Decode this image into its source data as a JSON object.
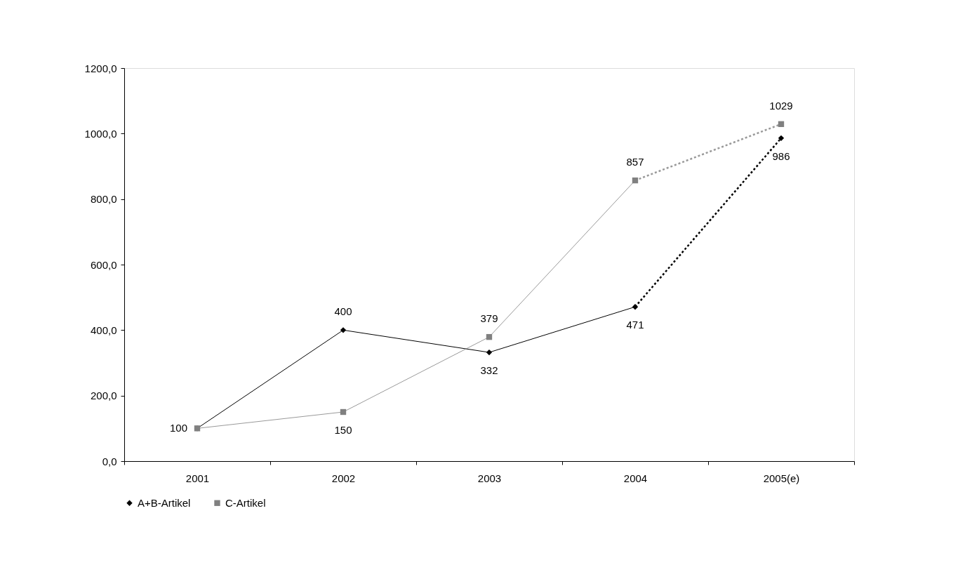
{
  "chart_data": {
    "type": "line",
    "categories": [
      "2001",
      "2002",
      "2003",
      "2004",
      "2005(e)"
    ],
    "series": [
      {
        "name": "A+B-Artikel",
        "color": "#000000",
        "marker": "diamond",
        "line_style": "solid",
        "values": [
          100,
          400,
          332,
          471,
          null
        ],
        "value_labels": [
          "100",
          "400",
          "332",
          "471",
          null
        ]
      },
      {
        "color": "#000000",
        "marker": "diamond",
        "line_style": "dotted",
        "values": [
          null,
          null,
          null,
          471,
          986
        ],
        "value_labels": [
          null,
          null,
          null,
          null,
          "986"
        ]
      },
      {
        "name": "C-Artikel",
        "color": "#808080",
        "marker": "square",
        "line_style": "solid",
        "values": [
          100,
          150,
          379,
          857,
          null
        ],
        "value_labels": [
          null,
          "150",
          "379",
          "857",
          null
        ]
      },
      {
        "color": "#808080",
        "marker": "square",
        "line_style": "dotted",
        "values": [
          null,
          null,
          null,
          857,
          1029
        ],
        "value_labels": [
          null,
          null,
          null,
          null,
          "1029"
        ]
      }
    ],
    "ylim": [
      0,
      1200
    ],
    "yticks": [
      {
        "value": 0,
        "label": "0,0"
      },
      {
        "value": 200,
        "label": "200,0"
      },
      {
        "value": 400,
        "label": "400,0"
      },
      {
        "value": 600,
        "label": "600,0"
      },
      {
        "value": 800,
        "label": "800,0"
      },
      {
        "value": 1000,
        "label": "1000,0"
      },
      {
        "value": 1200,
        "label": "1200,0"
      }
    ],
    "grid": false,
    "legend": "bottom"
  }
}
